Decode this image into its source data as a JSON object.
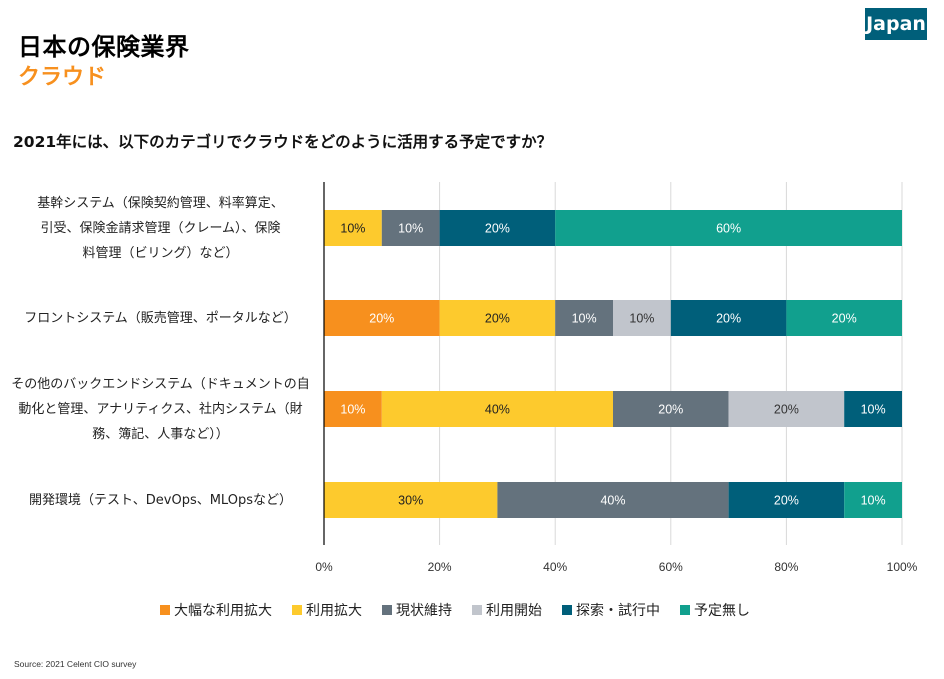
{
  "header": {
    "title": "日本の保険業界",
    "subtitle": "クラウド",
    "badge": "Japan"
  },
  "source": "Source: 2021 Celent CIO survey",
  "chart_data": {
    "type": "bar",
    "orientation": "horizontal",
    "stacked": true,
    "title": "2021年には、以下のカテゴリでクラウドをどのように活用する予定ですか？",
    "xlabel": "",
    "ylabel": "",
    "xlim": [
      0,
      100
    ],
    "x_ticks": [
      "0%",
      "20%",
      "40%",
      "60%",
      "80%",
      "100%"
    ],
    "grid": true,
    "legend_position": "bottom",
    "categories": [
      "基幹システム（保険契約管理、料率算定、引受、保険金請求管理（クレーム）、保険料管理（ビリング）など",
      "フロントシステム（販売管理、ポータルなど）",
      "その他のバックエンドシステム（ドキュメントの自動化と管理、アナリティクス、社内システム（財務、簿記、人事など））",
      "開発環境（テスト、DevOps、MLOpsなど）"
    ],
    "category_lines": [
      [
        "基幹システム（保険契約管理、料率算定、",
        "引受、保険金請求管理（クレーム）、保険",
        "料管理（ビリング）など）"
      ],
      [
        "フロントシステム（販売管理、ポータルなど）"
      ],
      [
        "その他のバックエンドシステム（ドキュメントの自",
        "動化と管理、アナリティクス、社内システム（財",
        "務、簿記、人事など））"
      ],
      [
        "開発環境（テスト、DevOps、MLOpsなど）"
      ]
    ],
    "series": [
      {
        "name": "大幅な利用拡大",
        "color": "#f7901e",
        "label_color": "#ffffff",
        "values": [
          0,
          20,
          10,
          0
        ]
      },
      {
        "name": "利用拡大",
        "color": "#fdca2d",
        "label_color": "#222222",
        "values": [
          10,
          20,
          40,
          30
        ]
      },
      {
        "name": "現状維持",
        "color": "#64727d",
        "label_color": "#ffffff",
        "values": [
          10,
          10,
          20,
          40
        ]
      },
      {
        "name": "利用開始",
        "color": "#c1c5cc",
        "label_color": "#333333",
        "values": [
          0,
          10,
          20,
          0
        ]
      },
      {
        "name": "探索・試行中",
        "color": "#005f7a",
        "label_color": "#ffffff",
        "values": [
          20,
          20,
          10,
          20
        ]
      },
      {
        "name": "予定無し",
        "color": "#11a08e",
        "label_color": "#ffffff",
        "values": [
          60,
          20,
          0,
          10
        ]
      }
    ]
  }
}
